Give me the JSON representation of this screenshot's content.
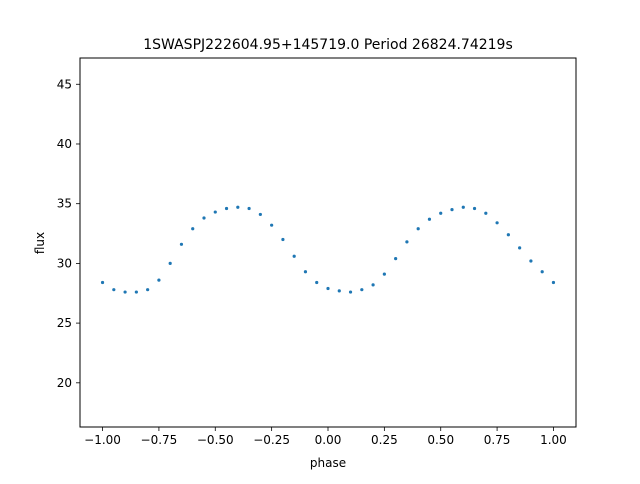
{
  "chart_data": {
    "type": "scatter",
    "title": "1SWASPJ222604.95+145719.0 Period 26824.74219s",
    "xlabel": "phase",
    "ylabel": "flux",
    "xlim": [
      -1.1,
      1.1
    ],
    "ylim": [
      16.3,
      47.2
    ],
    "xticks": [
      -1.0,
      -0.75,
      -0.5,
      -0.25,
      0.0,
      0.25,
      0.5,
      0.75,
      1.0
    ],
    "xtick_labels": [
      "−1.00",
      "−0.75",
      "−0.50",
      "−0.25",
      "0.00",
      "0.25",
      "0.50",
      "0.75",
      "1.00"
    ],
    "yticks": [
      20,
      25,
      30,
      35,
      40,
      45
    ],
    "ytick_labels": [
      "20",
      "25",
      "30",
      "35",
      "40",
      "45"
    ],
    "grid": false,
    "color": "#1f77b4",
    "series": [
      {
        "x": [
          -1.0,
          -0.95,
          -0.9,
          -0.85,
          -0.8,
          -0.75,
          -0.7,
          -0.65,
          -0.6,
          -0.55,
          -0.5,
          -0.45,
          -0.4,
          -0.35,
          -0.3,
          -0.25,
          -0.2,
          -0.15,
          -0.1,
          -0.05,
          0.0,
          0.05,
          0.1,
          0.15,
          0.2,
          0.25,
          0.3,
          0.35,
          0.4,
          0.45,
          0.5,
          0.55,
          0.6,
          0.65,
          0.7,
          0.75,
          0.8,
          0.85,
          0.9,
          0.95,
          1.0
        ],
        "y": [
          28.4,
          27.8,
          27.6,
          27.6,
          27.8,
          28.6,
          30.0,
          31.6,
          32.9,
          33.8,
          34.3,
          34.6,
          34.7,
          34.6,
          34.1,
          33.2,
          32.0,
          30.6,
          29.3,
          28.4,
          27.9,
          27.7,
          27.6,
          27.8,
          28.2,
          29.1,
          30.4,
          31.8,
          32.9,
          33.7,
          34.2,
          34.5,
          34.7,
          34.6,
          34.2,
          33.4,
          32.4,
          31.3,
          30.2,
          29.3,
          28.4
        ]
      }
    ]
  }
}
